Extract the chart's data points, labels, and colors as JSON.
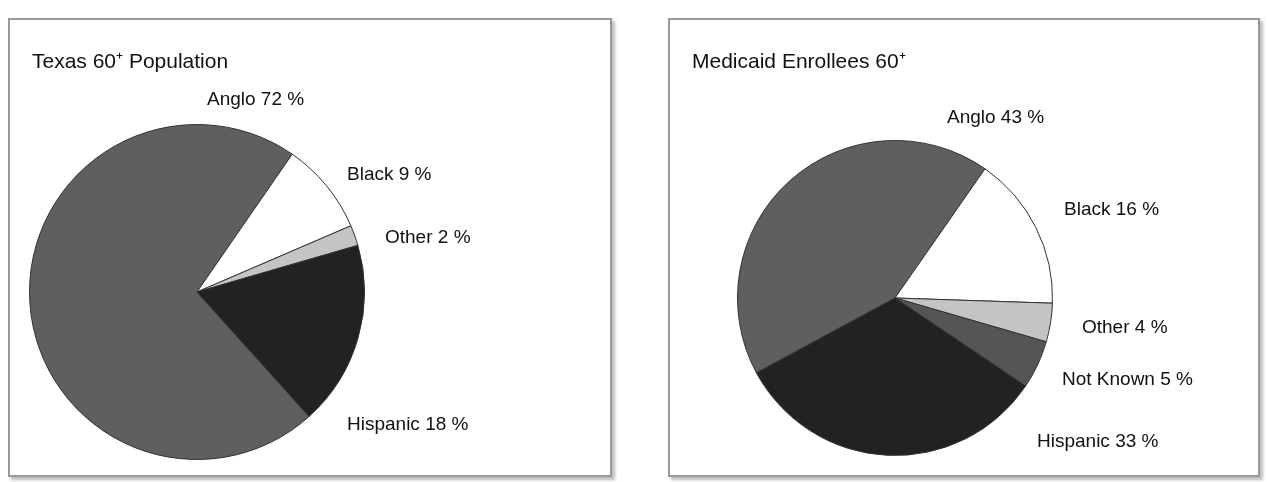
{
  "chart_data": [
    {
      "type": "pie",
      "title": "Texas 60⁺ Population",
      "categories": [
        "Anglo",
        "Black",
        "Other",
        "Hispanic"
      ],
      "values": [
        72,
        9,
        2,
        18
      ],
      "value_labels": [
        "72 %",
        "9 %",
        "2 %",
        "18 %"
      ],
      "colors": [
        "#5f5f5f",
        "#ffffff",
        "#c4c4c4",
        "#222222"
      ],
      "legend": false
    },
    {
      "type": "pie",
      "title": "Medicaid Enrollees 60⁺",
      "categories": [
        "Anglo",
        "Black",
        "Other",
        "Not Known",
        "Hispanic"
      ],
      "values": [
        43,
        16,
        4,
        5,
        33
      ],
      "value_labels": [
        "43 %",
        "16 %",
        "4 %",
        "5 %",
        "33 %"
      ],
      "colors": [
        "#5f5f5f",
        "#ffffff",
        "#c4c4c4",
        "#555555",
        "#222222"
      ],
      "legend": false
    }
  ]
}
